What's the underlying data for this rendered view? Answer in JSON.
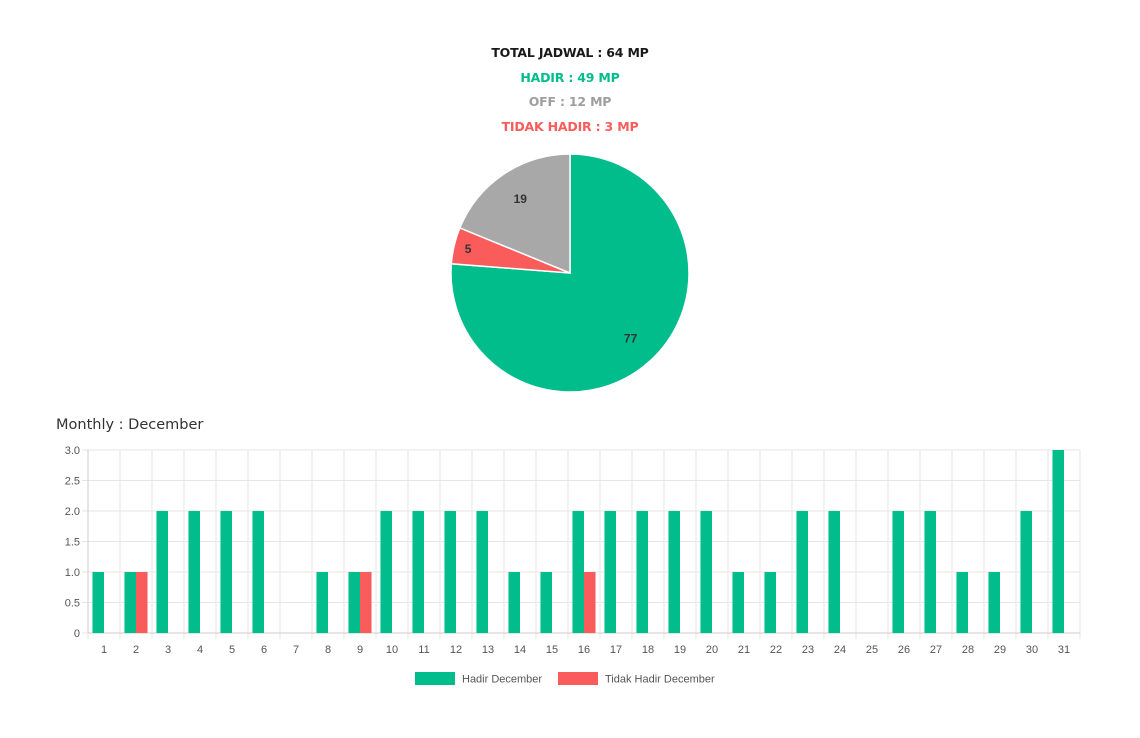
{
  "summary": {
    "total": "TOTAL JADWAL : 64 MP",
    "hadir": "HADIR : 49 MP",
    "off": "OFF : 12 MP",
    "tidak_hadir": "TIDAK HADIR : 3 MP"
  },
  "colors": {
    "hadir": "#00BD8B",
    "tidak_hadir": "#FA5C5C",
    "off": "#A8A8A8",
    "off_text": "#9E9E9E",
    "grid": "#E6E6E6",
    "axis_text": "#555555"
  },
  "monthly_title": "Monthly : December",
  "chart_data": [
    {
      "type": "pie",
      "labels": [
        "",
        "",
        ""
      ],
      "values": [
        77,
        5,
        19
      ],
      "series_keys": [
        "hadir",
        "tidak_hadir",
        "off"
      ]
    },
    {
      "type": "bar",
      "categories": [
        "1",
        "2",
        "3",
        "4",
        "5",
        "6",
        "7",
        "8",
        "9",
        "10",
        "11",
        "12",
        "13",
        "14",
        "15",
        "16",
        "17",
        "18",
        "19",
        "20",
        "21",
        "22",
        "23",
        "24",
        "25",
        "26",
        "27",
        "28",
        "29",
        "30",
        "31"
      ],
      "series": [
        {
          "name": "Hadir December",
          "key": "hadir",
          "values": [
            1,
            1,
            2,
            2,
            2,
            2,
            0,
            1,
            1,
            2,
            2,
            2,
            2,
            1,
            1,
            2,
            2,
            2,
            2,
            2,
            1,
            1,
            2,
            2,
            0,
            2,
            2,
            1,
            1,
            2,
            3
          ]
        },
        {
          "name": "Tidak Hadir December",
          "key": "tidak_hadir",
          "values": [
            0,
            1,
            0,
            0,
            0,
            0,
            0,
            0,
            1,
            0,
            0,
            0,
            0,
            0,
            0,
            1,
            0,
            0,
            0,
            0,
            0,
            0,
            0,
            0,
            0,
            0,
            0,
            0,
            0,
            0,
            0
          ]
        }
      ],
      "yticks": [
        "0",
        "0.5",
        "1.0",
        "1.5",
        "2.0",
        "2.5",
        "3.0"
      ],
      "ylim": [
        0,
        3
      ],
      "grid": true,
      "legend": "bottom"
    }
  ]
}
